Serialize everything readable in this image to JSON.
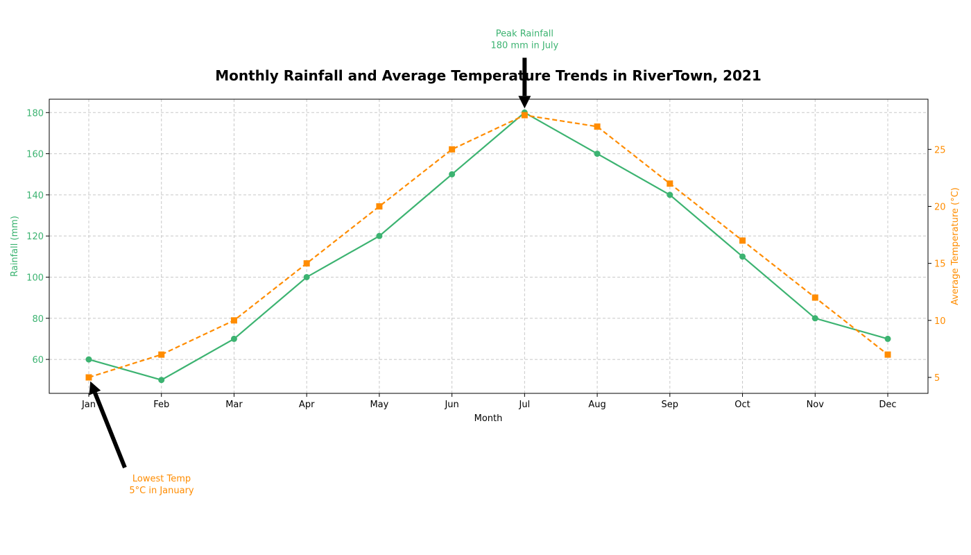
{
  "colors": {
    "rainfall": "#3cb371",
    "temperature": "#ff8c00",
    "grid": "#c8c8c8",
    "axis": "#000000"
  },
  "chart_data": {
    "type": "line",
    "title": "Monthly Rainfall and Average Temperature Trends in RiverTown, 2021",
    "xlabel": "Month",
    "ylabel_left": "Rainfall (mm)",
    "ylabel_right": "Average Temperature (°C)",
    "categories": [
      "Jan",
      "Feb",
      "Mar",
      "Apr",
      "May",
      "Jun",
      "Jul",
      "Aug",
      "Sep",
      "Oct",
      "Nov",
      "Dec"
    ],
    "ylim_left": [
      43.5,
      186.5
    ],
    "ylim_right": [
      3.6,
      29.4
    ],
    "yticks_left": [
      60,
      80,
      100,
      120,
      140,
      160,
      180
    ],
    "yticks_right": [
      5,
      10,
      15,
      20,
      25
    ],
    "grid": true,
    "series": [
      {
        "axis": "left",
        "line": "solid",
        "marker": "circle",
        "values": [
          60,
          50,
          70,
          100,
          120,
          150,
          180,
          160,
          140,
          110,
          80,
          70
        ]
      },
      {
        "axis": "right",
        "line": "dashed",
        "marker": "square",
        "values": [
          5,
          7,
          10,
          15,
          20,
          25,
          28,
          27,
          22,
          17,
          12,
          7
        ]
      }
    ],
    "annotations": [
      {
        "category": "Jul",
        "axis": "left",
        "value": 180,
        "lines": [
          "Peak Rainfall",
          "180 mm in July"
        ],
        "color": "rainfall",
        "placement": "above"
      },
      {
        "category": "Jan",
        "axis": "right",
        "value": 5,
        "lines": [
          "Lowest Temp",
          "5°C in January"
        ],
        "color": "temperature",
        "placement": "below-right"
      }
    ]
  }
}
